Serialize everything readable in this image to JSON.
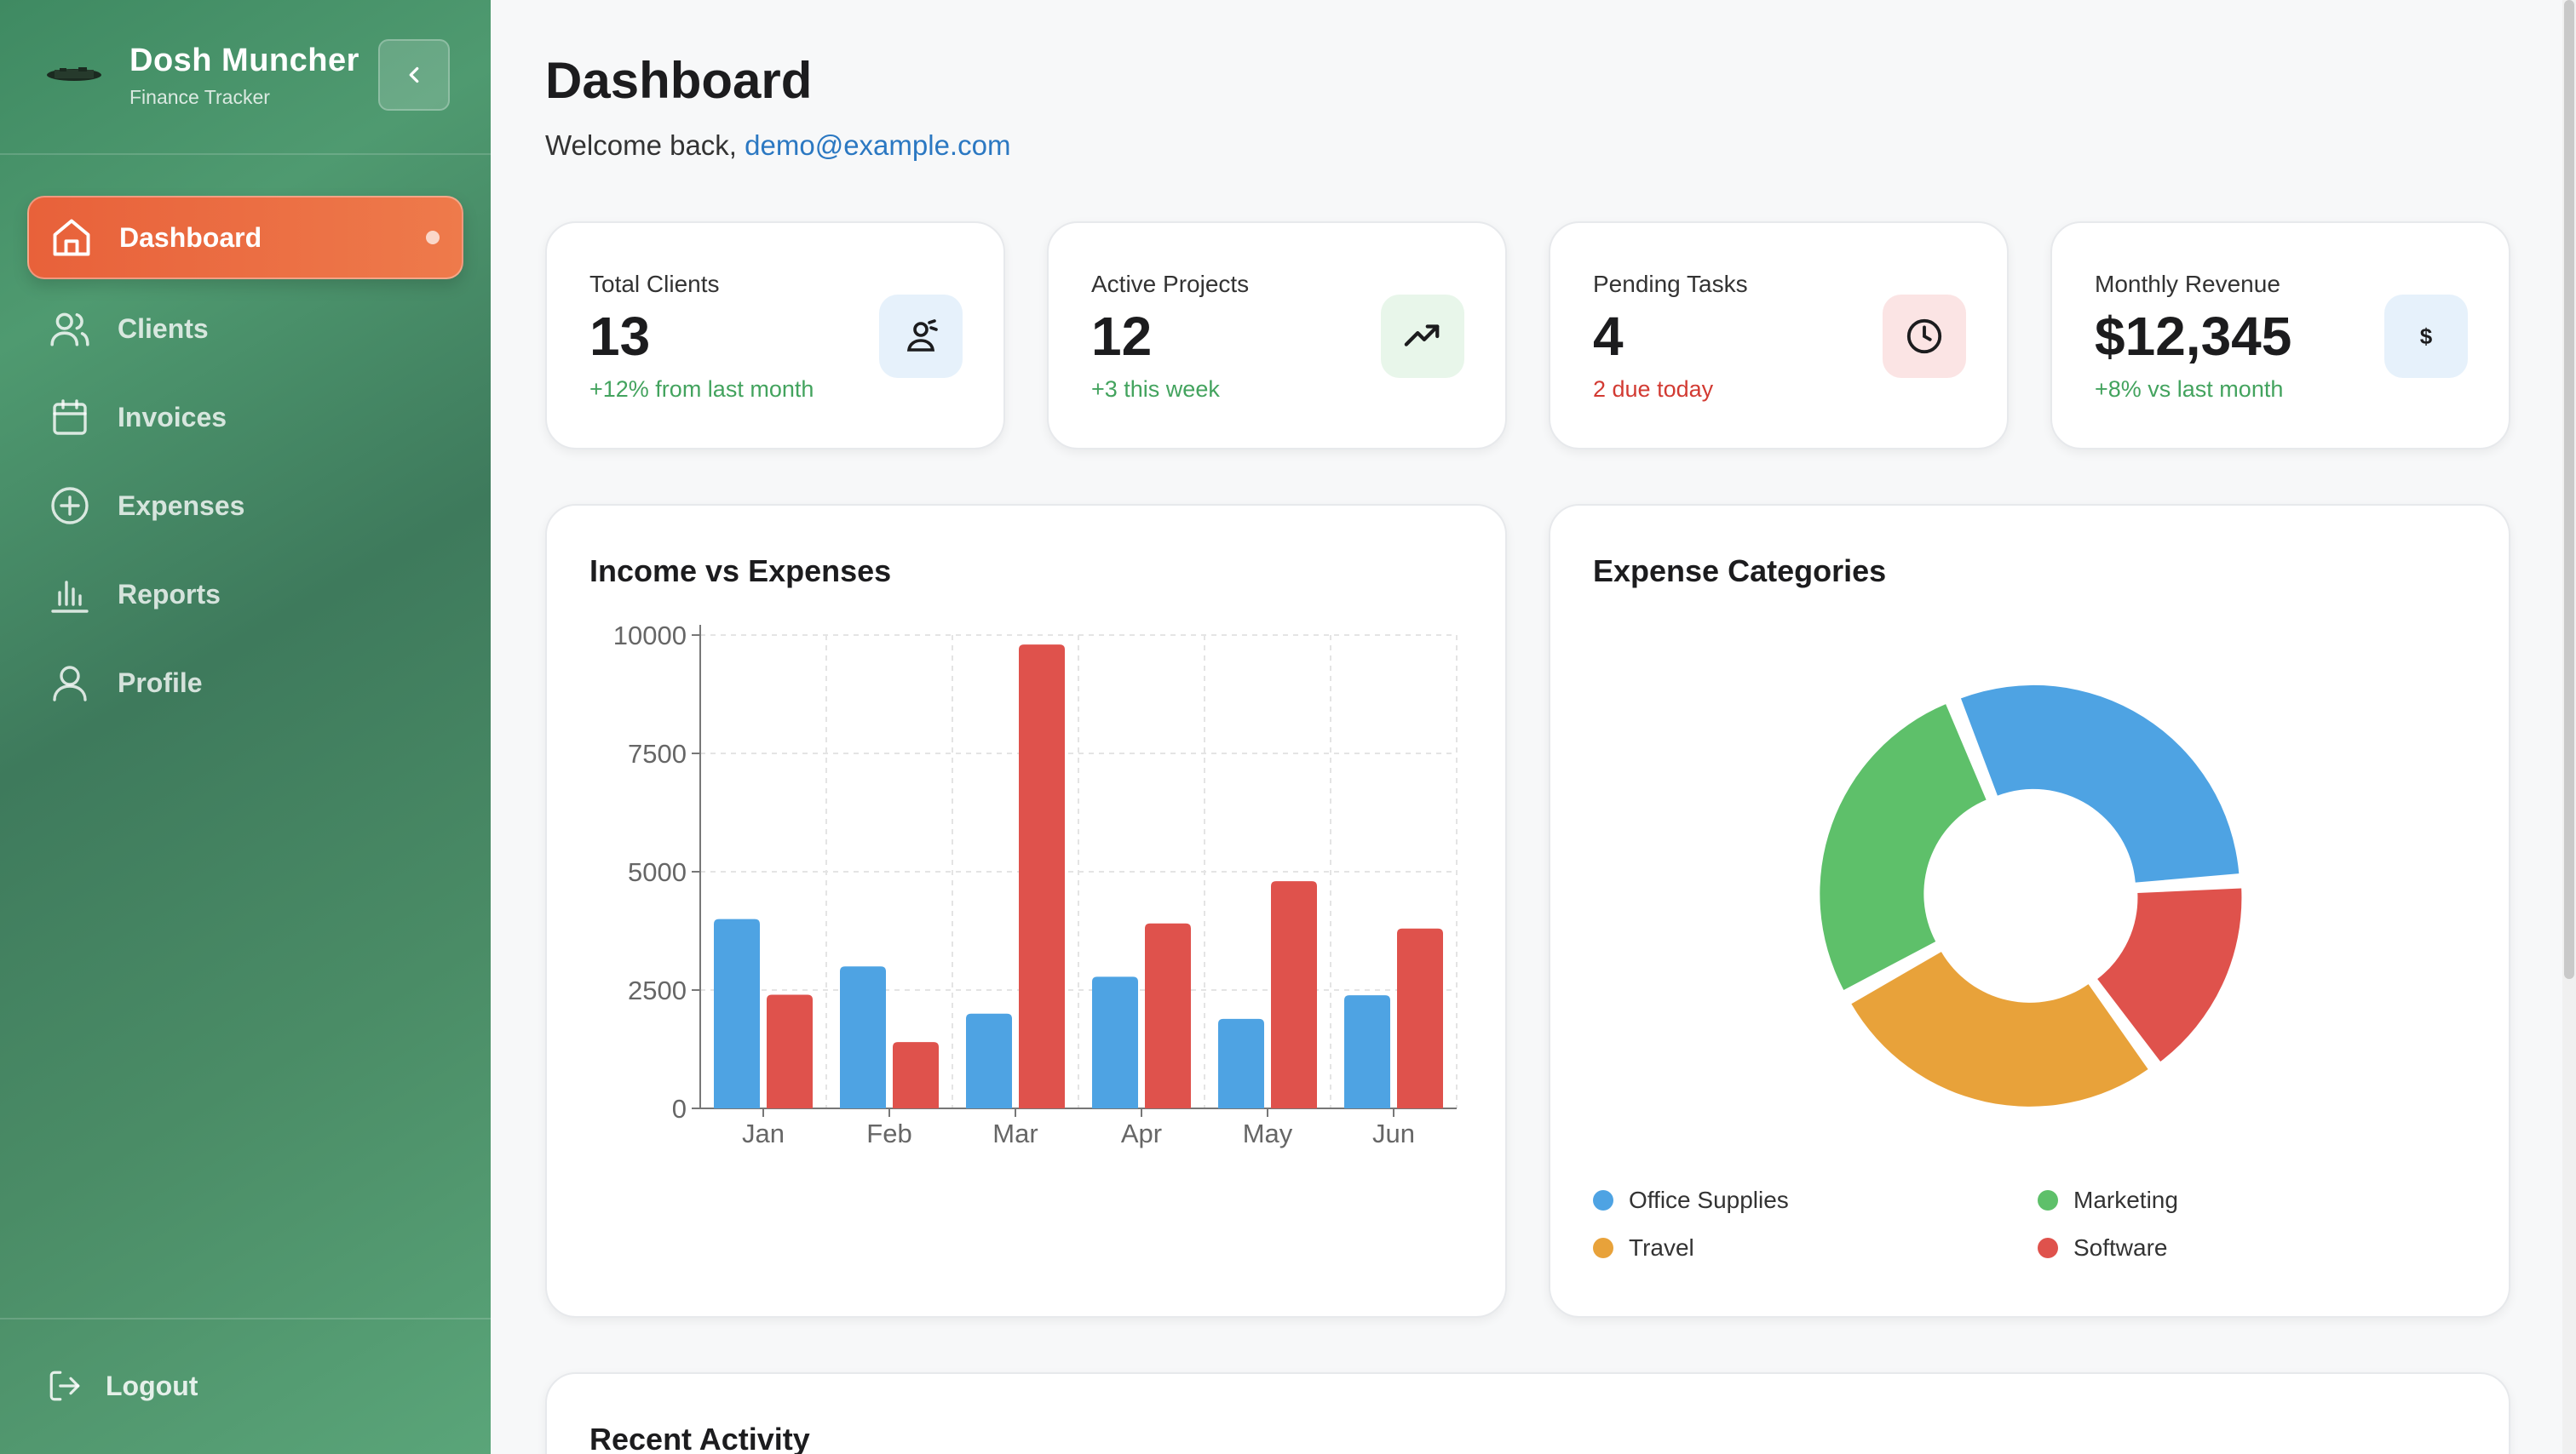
{
  "app": {
    "title": "Dosh Muncher",
    "subtitle": "Finance Tracker"
  },
  "sidebar": {
    "items": [
      {
        "label": "Dashboard",
        "icon": "home-icon",
        "active": true
      },
      {
        "label": "Clients",
        "icon": "users-icon",
        "active": false
      },
      {
        "label": "Invoices",
        "icon": "calendar-icon",
        "active": false
      },
      {
        "label": "Expenses",
        "icon": "plus-circle-icon",
        "active": false
      },
      {
        "label": "Reports",
        "icon": "bar-chart-icon",
        "active": false
      },
      {
        "label": "Profile",
        "icon": "user-icon",
        "active": false
      }
    ],
    "logout_label": "Logout"
  },
  "header": {
    "title": "Dashboard",
    "welcome_prefix": "Welcome back,",
    "user_email": "demo@example.com"
  },
  "stats": [
    {
      "label": "Total Clients",
      "value": "13",
      "sub": "+12% from last month",
      "sub_color": "#43a35e",
      "icon": "users-wave-icon",
      "icon_bg": "#e6f1fb"
    },
    {
      "label": "Active Projects",
      "value": "12",
      "sub": "+3 this week",
      "sub_color": "#43a35e",
      "icon": "trending-up-icon",
      "icon_bg": "#e8f6ea"
    },
    {
      "label": "Pending Tasks",
      "value": "4",
      "sub": "2 due today",
      "sub_color": "#d23a32",
      "icon": "clock-icon",
      "icon_bg": "#fbe4e4"
    },
    {
      "label": "Monthly Revenue",
      "value": "$12,345",
      "sub": "+8% vs last month",
      "sub_color": "#43a35e",
      "icon": "dollar-icon",
      "icon_bg": "#e6f1fb"
    }
  ],
  "panels": {
    "income_title": "Income vs Expenses",
    "expense_title": "Expense Categories",
    "recent_title": "Recent Activity"
  },
  "chart_data": [
    {
      "type": "bar",
      "title": "Income vs Expenses",
      "categories": [
        "Jan",
        "Feb",
        "Mar",
        "Apr",
        "May",
        "Jun"
      ],
      "series": [
        {
          "values": [
            4000,
            3000,
            2000,
            2780,
            1890,
            2390
          ],
          "color": "#4ea3e3"
        },
        {
          "values": [
            2400,
            1400,
            9800,
            3908,
            4800,
            3800
          ],
          "color": "#df524c"
        }
      ],
      "ylim": [
        0,
        10000
      ],
      "yticks": [
        0,
        2500,
        5000,
        7500,
        10000
      ],
      "grid": true
    },
    {
      "type": "pie",
      "title": "Expense Categories",
      "donut": true,
      "slices": [
        {
          "name": "Office Supplies",
          "value": 30,
          "color": "#4ea3e3"
        },
        {
          "name": "Software",
          "value": 16,
          "color": "#df524c"
        },
        {
          "name": "Travel",
          "value": 27,
          "color": "#e8a23a"
        },
        {
          "name": "Marketing",
          "value": 27,
          "color": "#5ec06a"
        }
      ],
      "legend": [
        {
          "name": "Office Supplies",
          "color": "#4ea3e3"
        },
        {
          "name": "Marketing",
          "color": "#5ec06a"
        },
        {
          "name": "Travel",
          "color": "#e8a23a"
        },
        {
          "name": "Software",
          "color": "#df524c"
        }
      ]
    }
  ]
}
